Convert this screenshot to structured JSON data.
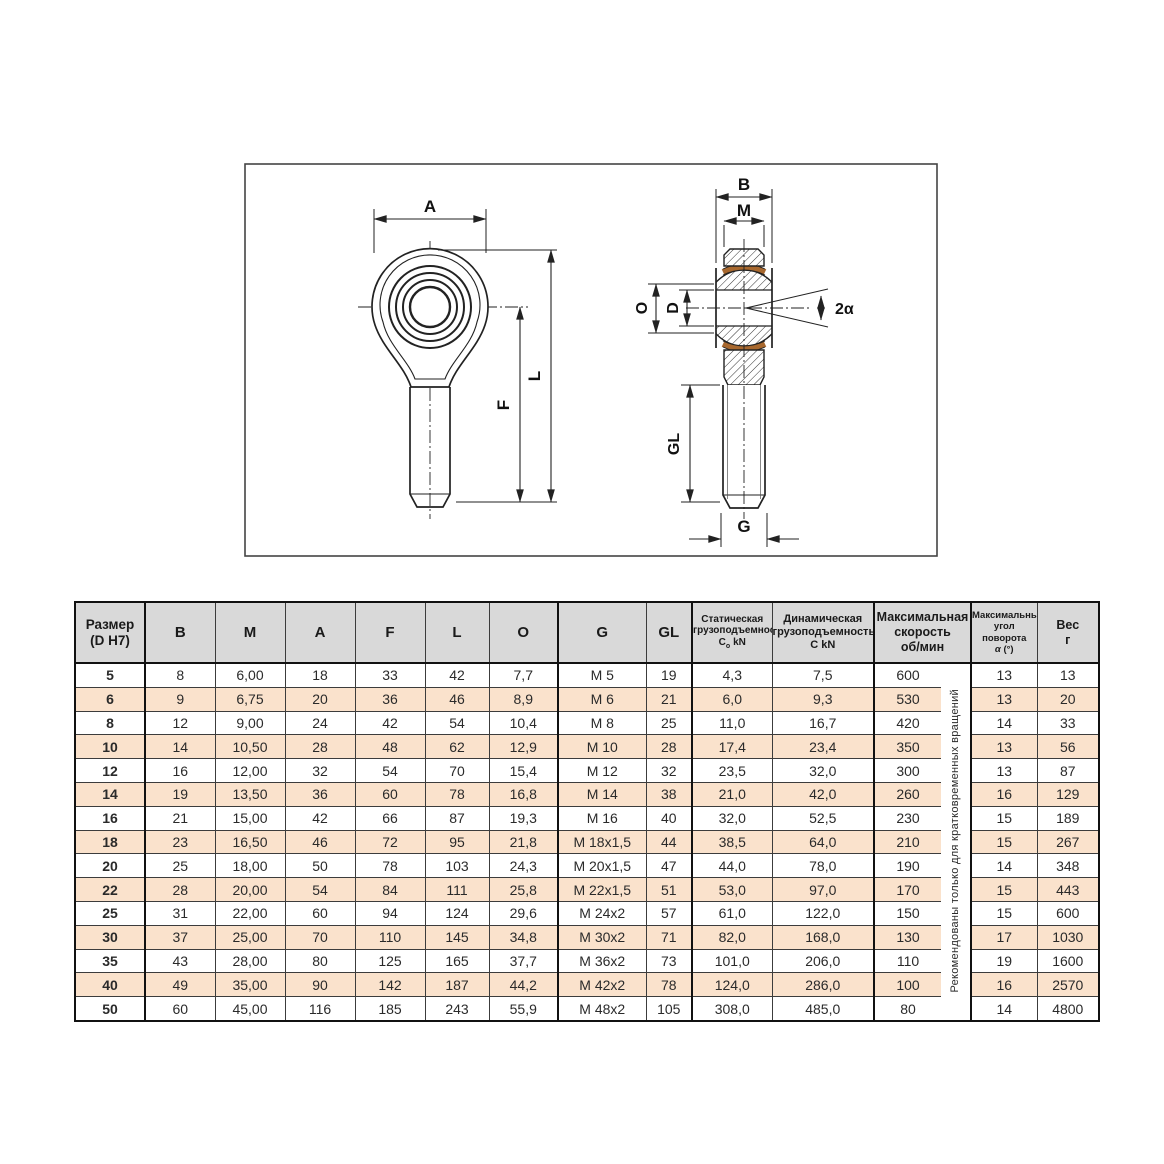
{
  "drawing": {
    "labels": {
      "a": "A",
      "f": "F",
      "l": "L",
      "b": "B",
      "m": "M",
      "o": "O",
      "d": "D",
      "two_alpha": "2α",
      "gl": "GL",
      "g": "G"
    },
    "seal_color": "#a8682e",
    "line_color": "#222222"
  },
  "table": {
    "colors": {
      "size_header_bg": "#ef9750",
      "header_bg": "#d9d9d9",
      "row_alt_bg": "#fae2cc",
      "row_bg": "#ffffff"
    },
    "header": {
      "size_line1": "Размер",
      "size_line2": "(D H7)",
      "b": "B",
      "m": "M",
      "a": "A",
      "f": "F",
      "l": "L",
      "o": "O",
      "g": "G",
      "gl": "GL",
      "static_l1": "Статическая",
      "static_l2": "грузоподъемность",
      "static_c": "C",
      "static_sub": "o",
      "static_unit": "kN",
      "dynamic_l1": "Динамическая",
      "dynamic_l2": "грузоподъемность",
      "dynamic_l3": "C kN",
      "speed_l1": "Максимальная",
      "speed_l2": "скорость",
      "speed_l3": "об/мин",
      "angle_l1": "Максимальный",
      "angle_l2": "угол поворота",
      "angle_l3a": "α",
      "angle_l3b": " (°)",
      "weight_l1": "Вес",
      "weight_l2": "г"
    },
    "vertical_note": "Рекомендованы только для кратковременных вращений",
    "rows": [
      {
        "size": "5",
        "b": "8",
        "m": "6,00",
        "a": "18",
        "f": "33",
        "l": "42",
        "o": "7,7",
        "g": "M 5",
        "gl": "19",
        "stat": "4,3",
        "dyn": "7,5",
        "speed": "600",
        "angle": "13",
        "weight": "13"
      },
      {
        "size": "6",
        "b": "9",
        "m": "6,75",
        "a": "20",
        "f": "36",
        "l": "46",
        "o": "8,9",
        "g": "M 6",
        "gl": "21",
        "stat": "6,0",
        "dyn": "9,3",
        "speed": "530",
        "angle": "13",
        "weight": "20"
      },
      {
        "size": "8",
        "b": "12",
        "m": "9,00",
        "a": "24",
        "f": "42",
        "l": "54",
        "o": "10,4",
        "g": "M 8",
        "gl": "25",
        "stat": "11,0",
        "dyn": "16,7",
        "speed": "420",
        "angle": "14",
        "weight": "33"
      },
      {
        "size": "10",
        "b": "14",
        "m": "10,50",
        "a": "28",
        "f": "48",
        "l": "62",
        "o": "12,9",
        "g": "M 10",
        "gl": "28",
        "stat": "17,4",
        "dyn": "23,4",
        "speed": "350",
        "angle": "13",
        "weight": "56"
      },
      {
        "size": "12",
        "b": "16",
        "m": "12,00",
        "a": "32",
        "f": "54",
        "l": "70",
        "o": "15,4",
        "g": "M 12",
        "gl": "32",
        "stat": "23,5",
        "dyn": "32,0",
        "speed": "300",
        "angle": "13",
        "weight": "87"
      },
      {
        "size": "14",
        "b": "19",
        "m": "13,50",
        "a": "36",
        "f": "60",
        "l": "78",
        "o": "16,8",
        "g": "M 14",
        "gl": "38",
        "stat": "21,0",
        "dyn": "42,0",
        "speed": "260",
        "angle": "16",
        "weight": "129"
      },
      {
        "size": "16",
        "b": "21",
        "m": "15,00",
        "a": "42",
        "f": "66",
        "l": "87",
        "o": "19,3",
        "g": "M 16",
        "gl": "40",
        "stat": "32,0",
        "dyn": "52,5",
        "speed": "230",
        "angle": "15",
        "weight": "189"
      },
      {
        "size": "18",
        "b": "23",
        "m": "16,50",
        "a": "46",
        "f": "72",
        "l": "95",
        "o": "21,8",
        "g": "M 18x1,5",
        "gl": "44",
        "stat": "38,5",
        "dyn": "64,0",
        "speed": "210",
        "angle": "15",
        "weight": "267"
      },
      {
        "size": "20",
        "b": "25",
        "m": "18,00",
        "a": "50",
        "f": "78",
        "l": "103",
        "o": "24,3",
        "g": "M 20x1,5",
        "gl": "47",
        "stat": "44,0",
        "dyn": "78,0",
        "speed": "190",
        "angle": "14",
        "weight": "348"
      },
      {
        "size": "22",
        "b": "28",
        "m": "20,00",
        "a": "54",
        "f": "84",
        "l": "111",
        "o": "25,8",
        "g": "M 22x1,5",
        "gl": "51",
        "stat": "53,0",
        "dyn": "97,0",
        "speed": "170",
        "angle": "15",
        "weight": "443"
      },
      {
        "size": "25",
        "b": "31",
        "m": "22,00",
        "a": "60",
        "f": "94",
        "l": "124",
        "o": "29,6",
        "g": "M 24x2",
        "gl": "57",
        "stat": "61,0",
        "dyn": "122,0",
        "speed": "150",
        "angle": "15",
        "weight": "600"
      },
      {
        "size": "30",
        "b": "37",
        "m": "25,00",
        "a": "70",
        "f": "110",
        "l": "145",
        "o": "34,8",
        "g": "M 30x2",
        "gl": "71",
        "stat": "82,0",
        "dyn": "168,0",
        "speed": "130",
        "angle": "17",
        "weight": "1030"
      },
      {
        "size": "35",
        "b": "43",
        "m": "28,00",
        "a": "80",
        "f": "125",
        "l": "165",
        "o": "37,7",
        "g": "M 36x2",
        "gl": "73",
        "stat": "101,0",
        "dyn": "206,0",
        "speed": "110",
        "angle": "19",
        "weight": "1600"
      },
      {
        "size": "40",
        "b": "49",
        "m": "35,00",
        "a": "90",
        "f": "142",
        "l": "187",
        "o": "44,2",
        "g": "M 42x2",
        "gl": "78",
        "stat": "124,0",
        "dyn": "286,0",
        "speed": "100",
        "angle": "16",
        "weight": "2570"
      },
      {
        "size": "50",
        "b": "60",
        "m": "45,00",
        "a": "116",
        "f": "185",
        "l": "243",
        "o": "55,9",
        "g": "M 48x2",
        "gl": "105",
        "stat": "308,0",
        "dyn": "485,0",
        "speed": "80",
        "angle": "14",
        "weight": "4800"
      }
    ]
  }
}
